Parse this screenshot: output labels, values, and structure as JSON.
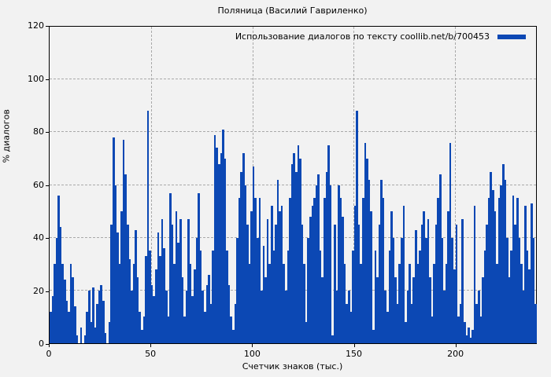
{
  "title": "Поляница (Василий Гавриленко)",
  "legend": {
    "label": "Использование диалогов по тексту coollib.net/b/700453"
  },
  "colors": {
    "bar": "#0c48b4",
    "background": "#f2f2f2",
    "grid": "#a9a9a9",
    "border": "#000000",
    "text": "#000000"
  },
  "axes": {
    "x": {
      "label": "Счетчик знаков (тыс.)",
      "tick_labels": [
        0,
        50,
        100,
        150,
        200
      ]
    },
    "y": {
      "label": "% диалогов",
      "tick_labels": [
        0,
        20,
        40,
        60,
        80,
        100,
        120
      ]
    }
  },
  "chart_data": {
    "type": "bar",
    "title": "Поляница (Василий Гавриленко)",
    "xlabel": "Счетчик знаков (тыс.)",
    "ylabel": "% диалогов",
    "xlim": [
      0,
      240
    ],
    "ylim": [
      0,
      120
    ],
    "x_ticks": [
      0,
      50,
      100,
      150,
      200
    ],
    "y_ticks": [
      0,
      20,
      40,
      60,
      80,
      100,
      120
    ],
    "grid": true,
    "legend_position": "top-right",
    "series": [
      {
        "name": "Использование диалогов по тексту coollib.net/b/700453",
        "color": "#0c48b4",
        "x_start": 0,
        "x_step": 1,
        "values": [
          12,
          18,
          30,
          40,
          56,
          44,
          30,
          24,
          16,
          12,
          30,
          25,
          14,
          3,
          0,
          6,
          0,
          3,
          12,
          20,
          8,
          21,
          6,
          15,
          20,
          22,
          16,
          4,
          0,
          8,
          45,
          78,
          60,
          42,
          30,
          50,
          77,
          64,
          45,
          32,
          20,
          30,
          43,
          25,
          12,
          5,
          10,
          33,
          88,
          35,
          22,
          18,
          28,
          42,
          33,
          47,
          36,
          20,
          10,
          57,
          45,
          30,
          50,
          38,
          47,
          25,
          10,
          20,
          47,
          30,
          18,
          28,
          40,
          57,
          35,
          20,
          12,
          22,
          26,
          15,
          35,
          79,
          74,
          68,
          72,
          81,
          70,
          35,
          22,
          10,
          5,
          15,
          40,
          55,
          65,
          72,
          60,
          45,
          30,
          50,
          67,
          55,
          40,
          55,
          20,
          37,
          25,
          47,
          30,
          52,
          35,
          45,
          62,
          50,
          52,
          30,
          20,
          35,
          55,
          68,
          72,
          65,
          75,
          70,
          45,
          30,
          8,
          40,
          48,
          52,
          55,
          60,
          64,
          35,
          25,
          55,
          65,
          75,
          60,
          3,
          45,
          20,
          60,
          55,
          48,
          30,
          15,
          20,
          12,
          35,
          52,
          88,
          45,
          30,
          55,
          76,
          70,
          62,
          50,
          5,
          35,
          25,
          45,
          62,
          55,
          20,
          12,
          35,
          50,
          40,
          25,
          15,
          30,
          40,
          52,
          8,
          20,
          30,
          15,
          25,
          43,
          30,
          35,
          45,
          50,
          40,
          47,
          25,
          10,
          30,
          45,
          55,
          64,
          40,
          20,
          30,
          50,
          76,
          40,
          28,
          45,
          10,
          15,
          47,
          8,
          3,
          6,
          2,
          5,
          52,
          15,
          20,
          10,
          25,
          35,
          45,
          55,
          65,
          58,
          50,
          30,
          55,
          60,
          68,
          62,
          40,
          25,
          35,
          56,
          45,
          55,
          40,
          30,
          20,
          52,
          35,
          28,
          53,
          40,
          15
        ]
      }
    ]
  }
}
